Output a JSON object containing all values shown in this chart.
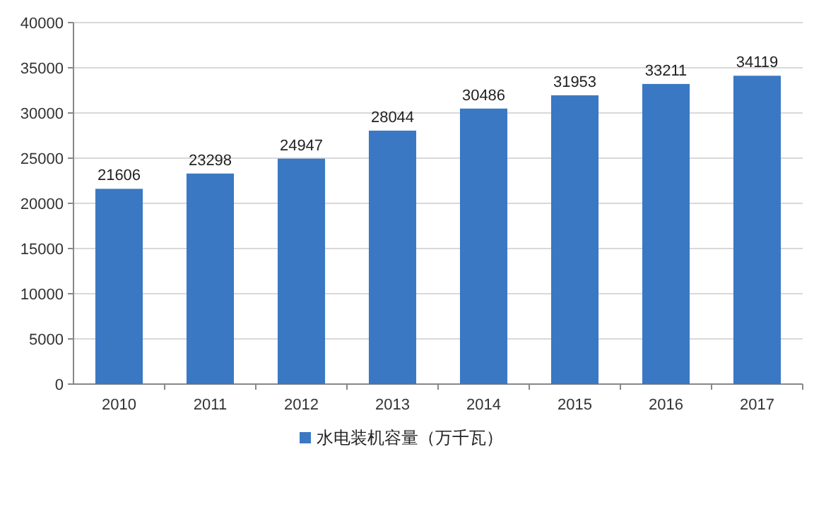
{
  "chart_data": {
    "type": "bar",
    "categories": [
      "2010",
      "2011",
      "2012",
      "2013",
      "2014",
      "2015",
      "2016",
      "2017"
    ],
    "series": [
      {
        "name": "水电装机容量（万千瓦）",
        "color": "#3a78c4",
        "values": [
          21606,
          23298,
          24947,
          28044,
          30486,
          31953,
          33211,
          34119
        ]
      }
    ],
    "ylim": [
      0,
      40000
    ],
    "yticks": [
      0,
      5000,
      10000,
      15000,
      20000,
      25000,
      30000,
      35000,
      40000
    ],
    "grid": "y",
    "legend": "bottom",
    "data_labels": true
  }
}
